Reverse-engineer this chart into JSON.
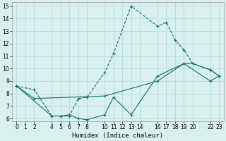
{
  "xlabel": "Humidex (Indice chaleur)",
  "bg_color": "#d8f0ee",
  "grid_color": "#b8dbd8",
  "line_color": "#1a6b65",
  "xlim": [
    -0.5,
    23.5
  ],
  "ylim": [
    5.8,
    15.3
  ],
  "xticks": [
    0,
    1,
    2,
    4,
    5,
    6,
    7,
    8,
    10,
    11,
    12,
    13,
    14,
    16,
    17,
    18,
    19,
    20,
    22,
    23
  ],
  "yticks": [
    6,
    7,
    8,
    9,
    10,
    11,
    12,
    13,
    14,
    15
  ],
  "line1_dashed": {
    "x": [
      0,
      2,
      4,
      5,
      6,
      7,
      8,
      10,
      11,
      13,
      16,
      17,
      18,
      19,
      20,
      22,
      23
    ],
    "y": [
      8.6,
      8.3,
      6.2,
      6.2,
      6.2,
      7.6,
      7.7,
      9.7,
      11.2,
      15.0,
      13.4,
      13.7,
      12.3,
      11.5,
      10.4,
      9.9,
      9.4
    ]
  },
  "line2_solid": {
    "x": [
      0,
      4,
      5,
      6,
      7,
      8,
      10,
      11,
      13,
      16,
      19,
      20,
      22,
      23
    ],
    "y": [
      8.6,
      6.2,
      6.2,
      6.3,
      6.0,
      5.9,
      6.3,
      7.7,
      6.3,
      9.4,
      10.4,
      10.4,
      9.9,
      9.4
    ]
  },
  "line3_solid": {
    "x": [
      0,
      2,
      10,
      16,
      19,
      22,
      23
    ],
    "y": [
      8.6,
      7.6,
      7.8,
      9.0,
      10.4,
      9.0,
      9.4
    ]
  }
}
